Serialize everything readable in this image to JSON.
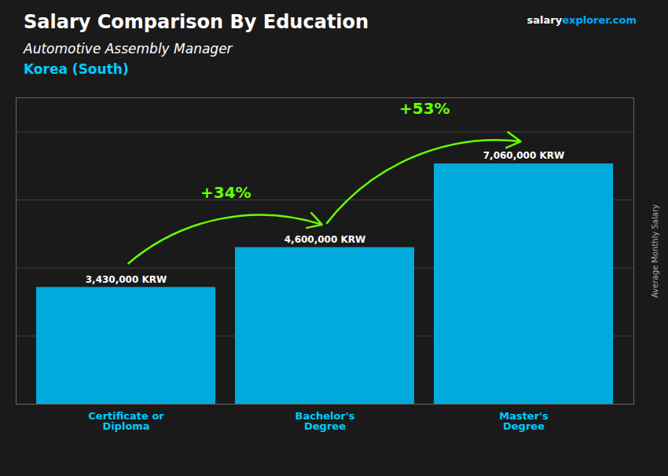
{
  "chart_data": {
    "type": "bar",
    "title": "Salary Comparison By Education",
    "subtitle": "Automotive Assembly Manager",
    "location": "Korea (South)",
    "source": [
      "salary",
      "explorer.com"
    ],
    "ylabel": "Average Monthly Salary",
    "categories": [
      "Certificate or\nDiploma",
      "Bachelor's\nDegree",
      "Master's\nDegree"
    ],
    "values": [
      3430000,
      4600000,
      7060000
    ],
    "value_labels": [
      "3,430,000 KRW",
      "4,600,000 KRW",
      "7,060,000 KRW"
    ],
    "data_labels": true,
    "color": "#00aadd",
    "annotations": [
      {
        "text": "+34%",
        "color": "#66ff00"
      },
      {
        "text": "+53%",
        "color": "#66ff00"
      }
    ],
    "ylim": [
      0,
      9000000
    ],
    "yticks": [
      0,
      2000000,
      4000000,
      6000000,
      8000000
    ],
    "grid": true,
    "tick_labels": "x"
  }
}
